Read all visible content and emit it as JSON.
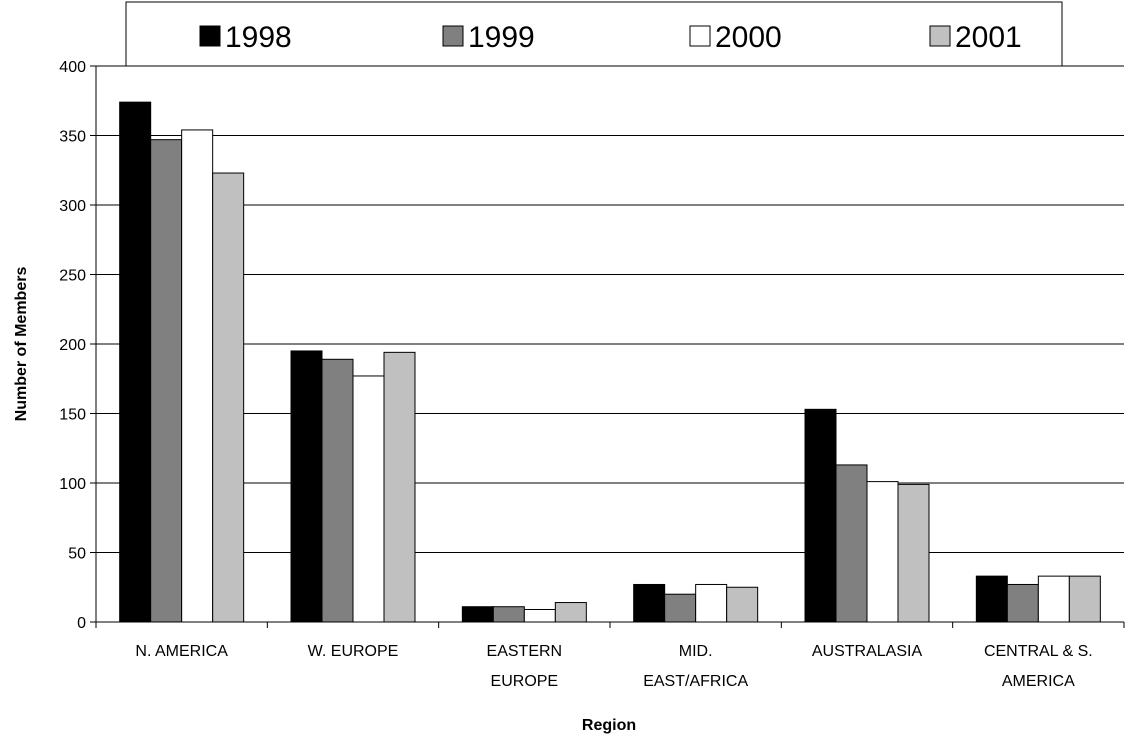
{
  "chart_data": {
    "type": "bar",
    "categories": [
      [
        "N. AMERICA"
      ],
      [
        "W. EUROPE"
      ],
      [
        "EASTERN",
        "EUROPE"
      ],
      [
        "MID.",
        "EAST/AFRICA"
      ],
      [
        "AUSTRALASIA"
      ],
      [
        "CENTRAL & S.",
        "AMERICA"
      ]
    ],
    "series": [
      {
        "name": "1998",
        "color": "#000000",
        "values": [
          374,
          195,
          11,
          27,
          153,
          33
        ]
      },
      {
        "name": "1999",
        "color": "#808080",
        "values": [
          347,
          189,
          11,
          20,
          113,
          27
        ]
      },
      {
        "name": "2000",
        "color": "#ffffff",
        "values": [
          354,
          177,
          9,
          27,
          101,
          33
        ]
      },
      {
        "name": "2001",
        "color": "#c0c0c0",
        "values": [
          323,
          194,
          14,
          25,
          99,
          33
        ]
      }
    ],
    "xlabel": "Region",
    "ylabel": "Number of Members",
    "ylim": [
      0,
      400
    ],
    "yticks": [
      0,
      50,
      100,
      150,
      200,
      250,
      300,
      350,
      400
    ],
    "grid": true,
    "legend_position": "top"
  }
}
